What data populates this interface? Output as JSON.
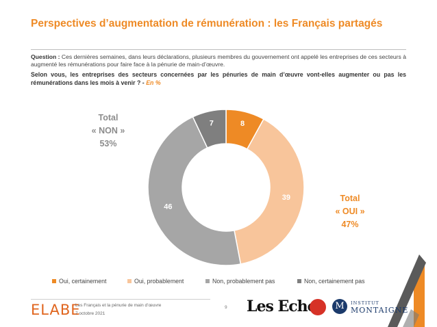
{
  "header": {
    "title": "Perspectives d’augmentation de rémunération : les Français partagés"
  },
  "question": {
    "label": "Question :",
    "context": "Ces dernières semaines, dans leurs déclarations, plusieurs membres du gouvernement ont appelé les entreprises de ces secteurs à augmenté les rémunérations pour faire face à la pénurie de main-d’œuvre.",
    "main": "Selon vous, les entreprises des secteurs concernées par les pénuries de main d’œuvre vont-elles augmenter ou pas les rémunérations dans les mois à venir ? -",
    "unit": "En %"
  },
  "totals": {
    "non": {
      "line1": "Total",
      "line2": "« NON »",
      "value": "53%"
    },
    "oui": {
      "line1": "Total",
      "line2": "« OUI »",
      "value": "47%"
    }
  },
  "chart_data": {
    "type": "pie",
    "donut": true,
    "categories": [
      "Oui, certainement",
      "Oui, probablement",
      "Non, probablement pas",
      "Non, certainement pas"
    ],
    "values": [
      8,
      39,
      46,
      7
    ],
    "colors": [
      "#ee8a25",
      "#f8c59b",
      "#a6a6a6",
      "#7f7f7f"
    ],
    "unit": "%",
    "legend_position": "bottom"
  },
  "footer": {
    "brand": "ELABE",
    "study": "Les Français et la pénurie de main d’œuvre",
    "date": "7 octobre 2021",
    "page": "9",
    "partner1": "Les Echos",
    "partner2_line1": "INSTITUT",
    "partner2_line2": "MONTAIGNE",
    "partner2_initial": "M"
  }
}
